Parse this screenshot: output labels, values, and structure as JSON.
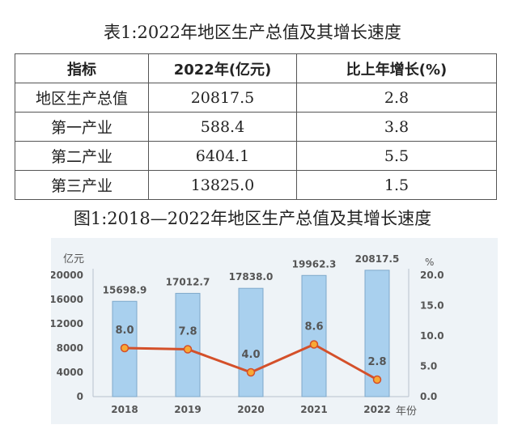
{
  "table": {
    "title": "表1:2022年地区生产总值及其增长速度",
    "headers": [
      "指标",
      "2022年(亿元)",
      "比上年增长(%)"
    ],
    "rows": [
      [
        "地区生产总值",
        "20817.5",
        "2.8"
      ],
      [
        "第一产业",
        "588.4",
        "3.8"
      ],
      [
        "第二产业",
        "6404.1",
        "5.5"
      ],
      [
        "第三产业",
        "13825.0",
        "1.5"
      ]
    ]
  },
  "chart_data": {
    "type": "bar+line",
    "title": "图1:2018—2022年地区生产总值及其增长速度",
    "categories": [
      "2018",
      "2019",
      "2020",
      "2021",
      "2022"
    ],
    "xlabel": "年份",
    "ylabel_left": "亿元",
    "ylabel_right": "%",
    "ylim_left": [
      0,
      20000
    ],
    "yticks_left": [
      "0",
      "4000",
      "8000",
      "12000",
      "16000",
      "20000"
    ],
    "ylim_right": [
      0,
      20
    ],
    "yticks_right": [
      "0.0",
      "5.0",
      "10.0",
      "15.0",
      "20.0"
    ],
    "grid": false,
    "series": [
      {
        "type": "bar",
        "axis": "left",
        "values": [
          15698.9,
          17012.7,
          17838.0,
          19962.3,
          20817.5
        ],
        "labels": [
          "15698.9",
          "17012.7",
          "17838.0",
          "19962.3",
          "20817.5"
        ],
        "color": "#a9d0ee"
      },
      {
        "type": "line",
        "axis": "right",
        "values": [
          8.0,
          7.8,
          4.0,
          8.6,
          2.8
        ],
        "labels": [
          "8.0",
          "7.8",
          "4.0",
          "8.6",
          "2.8"
        ],
        "color": "#d4502a",
        "marker_color": "#f8a935"
      }
    ]
  }
}
